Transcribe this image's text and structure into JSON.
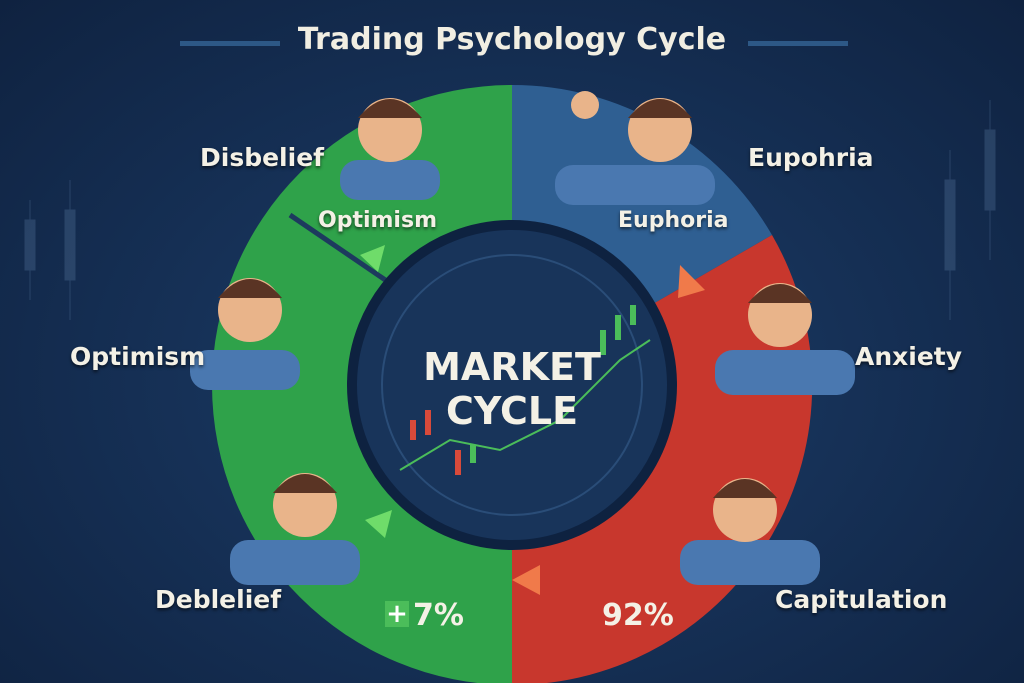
{
  "title": "Trading Psychology Cycle",
  "center": {
    "line1": "MARKET",
    "line2": "CYCLE"
  },
  "outer_labels": {
    "disbelief": "Disbelief",
    "euphoria_top": "Eupohria",
    "optimism_left": "Optimism",
    "anxiety": "Anxiety",
    "debelief": "Deblelief",
    "capitulation": "Capitulation"
  },
  "ring_labels": {
    "optimism": "Optimism",
    "euphoria": "Euphoria"
  },
  "stats": {
    "gain": "7%",
    "gain_icon": "plus-icon",
    "loss": "92%"
  },
  "colors": {
    "green": "#2fa24a",
    "blue": "#2f5f92",
    "red": "#c8372d",
    "background": "#163157"
  }
}
